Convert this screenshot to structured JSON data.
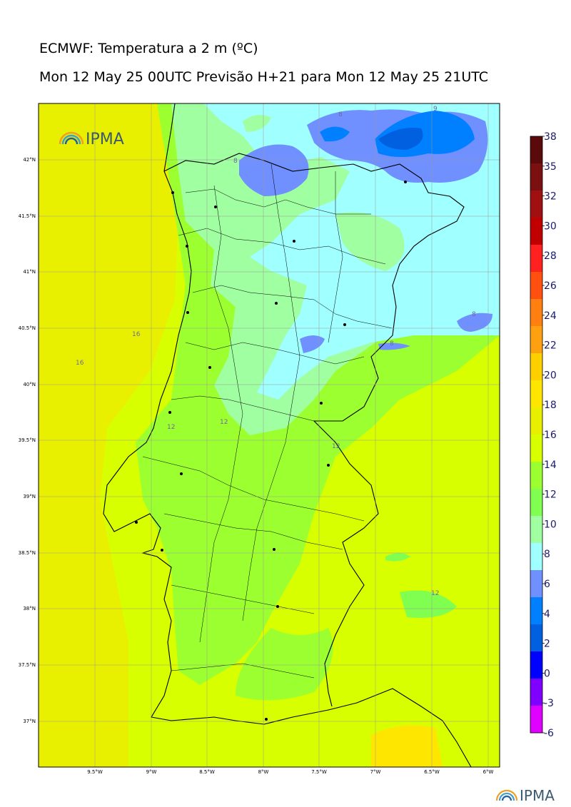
{
  "header": {
    "title": "ECMWF: Temperatura a 2 m (ºC)",
    "subtitle": "Mon 12 May 25 00UTC Previsão H+21 para Mon 12 May 25 21UTC"
  },
  "map": {
    "lat_labels": [
      "42°N",
      "41.5°N",
      "41°N",
      "40.5°N",
      "40°N",
      "39.5°N",
      "39°N",
      "38.5°N",
      "38°N",
      "37.5°N",
      "37°N"
    ],
    "lon_labels": [
      "9.5°W",
      "9°W",
      "8.5°W",
      "8°W",
      "7.5°W",
      "7°W",
      "6.5°W",
      "6°W"
    ],
    "contour_labels": [
      "8",
      "9",
      "8",
      "8",
      "16",
      "16",
      "12",
      "12",
      "12",
      "12",
      "8"
    ]
  },
  "colorbar": {
    "labels": [
      "38",
      "35",
      "32",
      "30",
      "28",
      "26",
      "24",
      "22",
      "20",
      "18",
      "16",
      "14",
      "12",
      "10",
      "8",
      "6",
      "4",
      "2",
      "0",
      "-3",
      "-6"
    ],
    "colors": [
      "#5a0a0a",
      "#7a1010",
      "#a01010",
      "#c00000",
      "#ff2020",
      "#ff5010",
      "#ff8010",
      "#ffa010",
      "#ffd000",
      "#ffe600",
      "#e8f000",
      "#d8ff00",
      "#9cff30",
      "#80ff50",
      "#a0ffa0",
      "#a0ffff",
      "#7090ff",
      "#0080ff",
      "#0060e0",
      "#0000ff",
      "#8000ff",
      "#e000ff"
    ]
  },
  "logo": {
    "text": "IPMA"
  },
  "footer_logo": {
    "text": "IPMA"
  }
}
